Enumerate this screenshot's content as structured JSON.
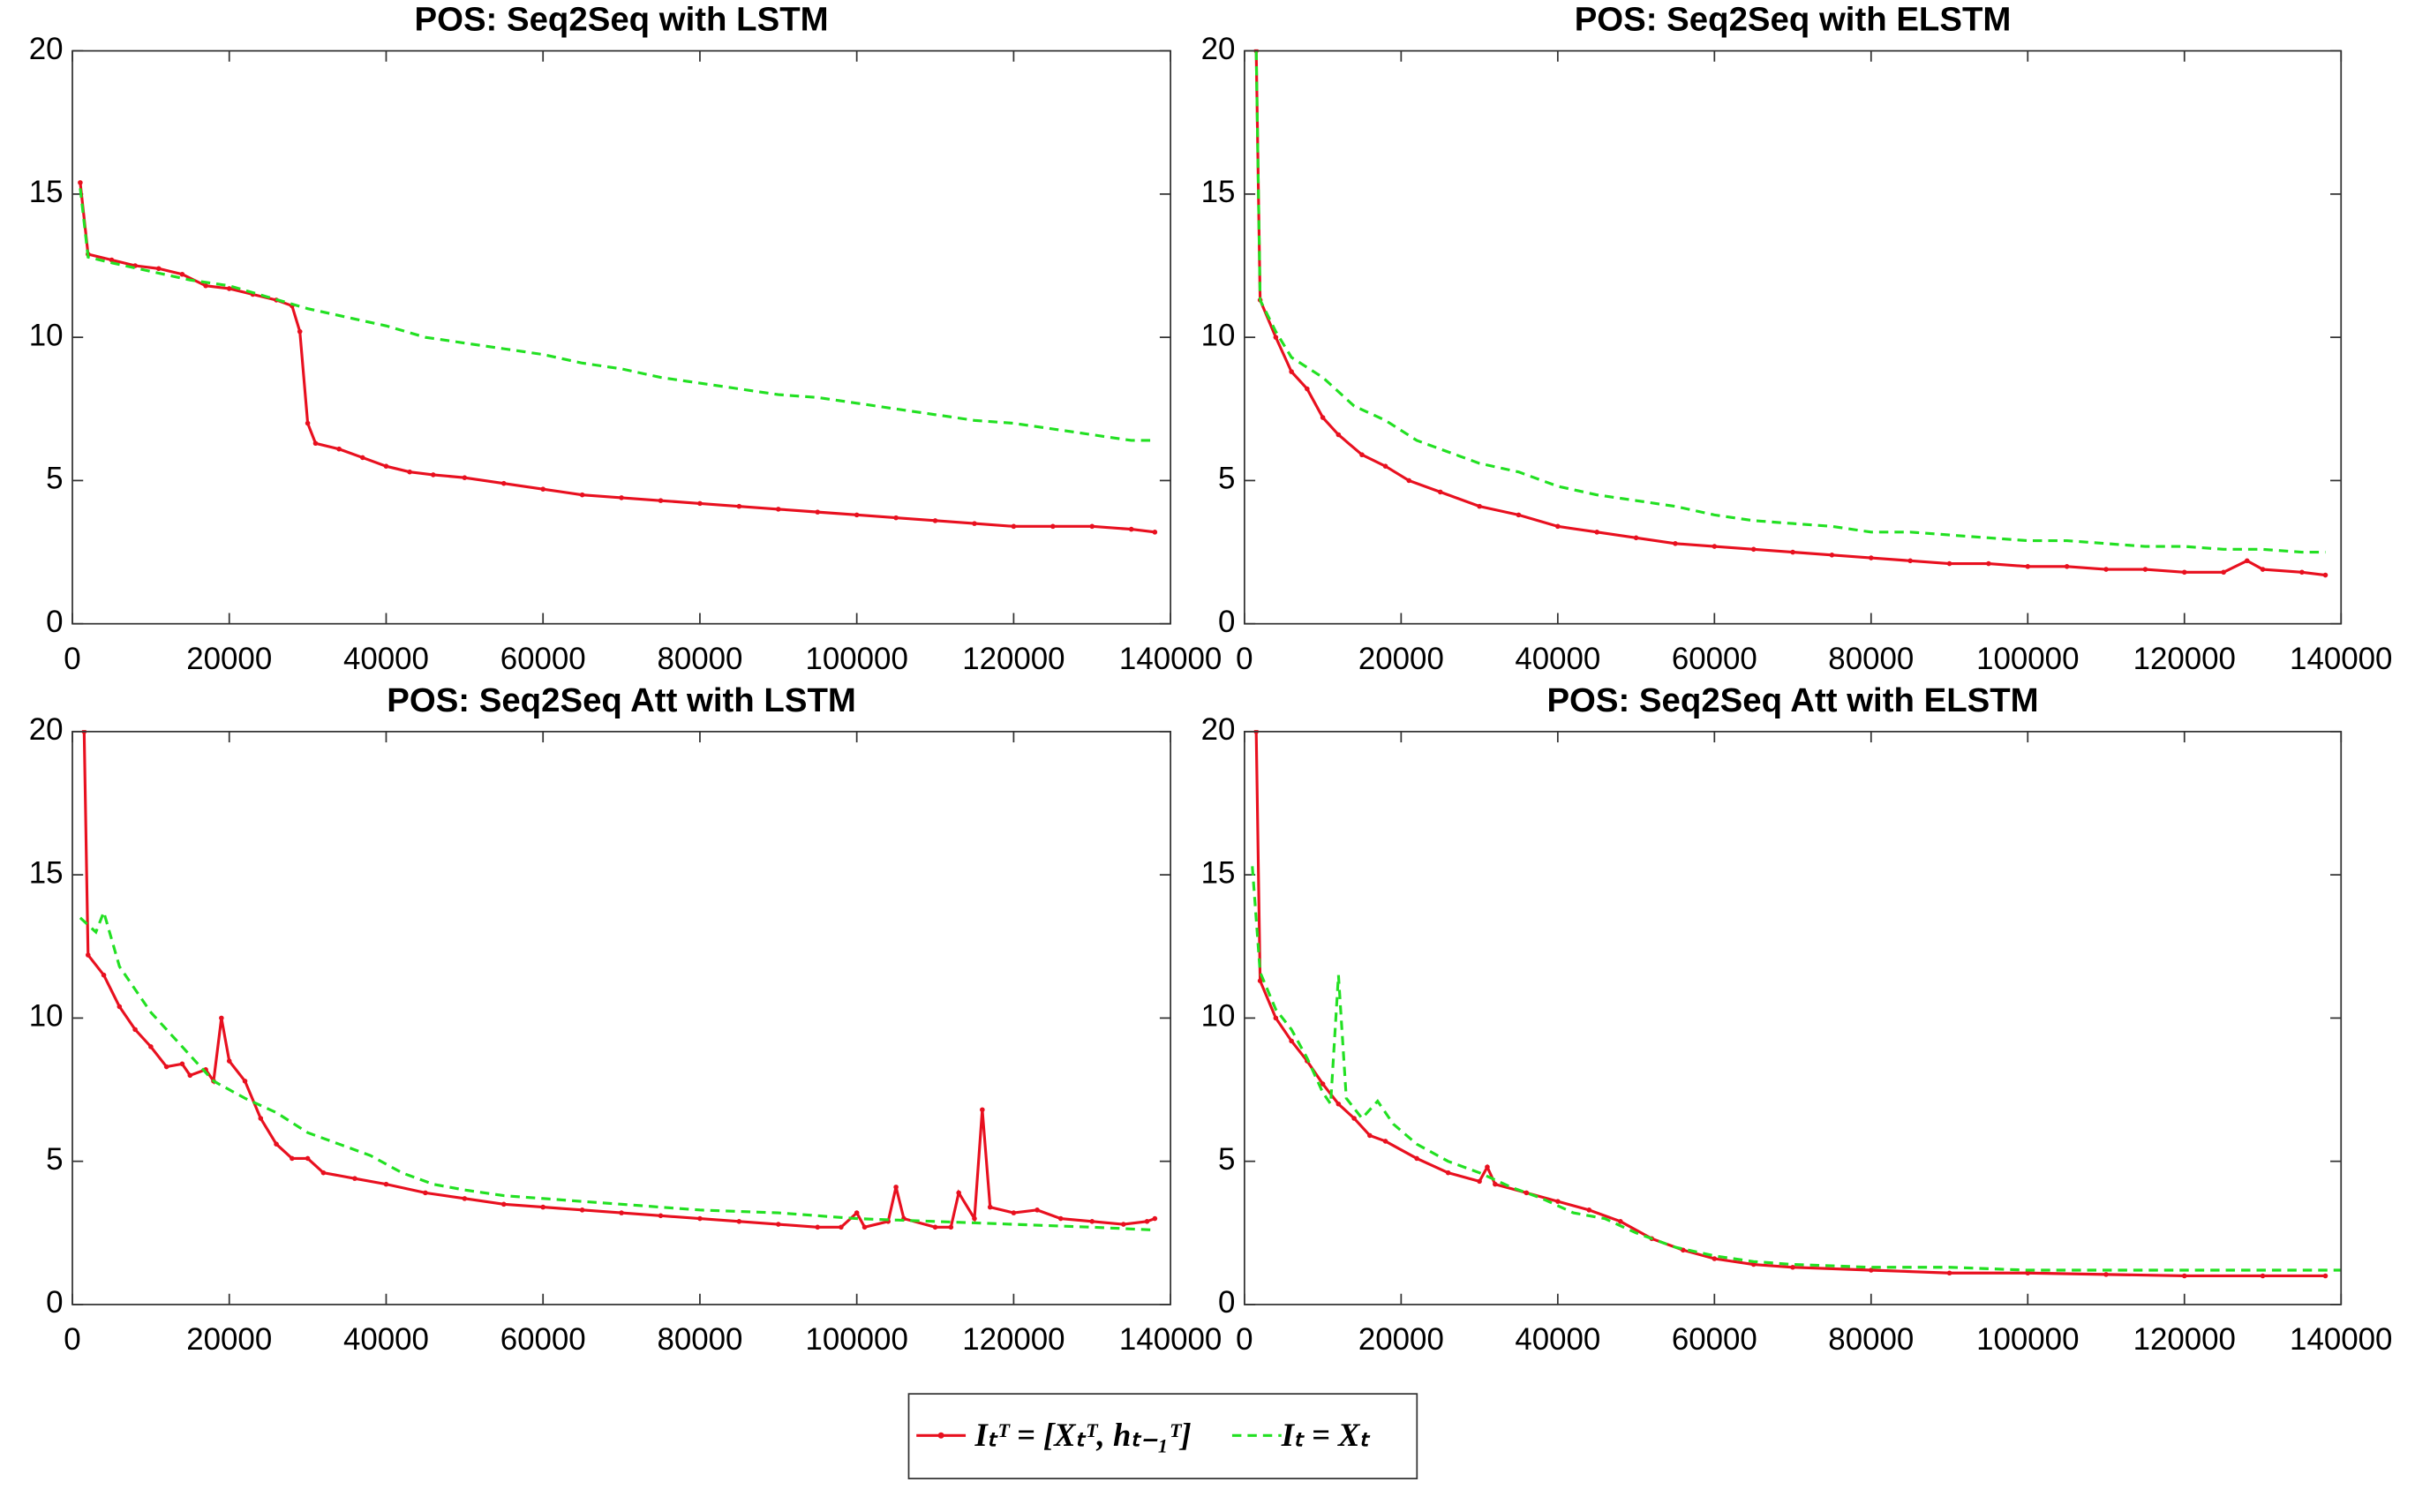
{
  "chart_data": [
    {
      "type": "line",
      "title": "POS: Seq2Seq with LSTM",
      "xlim": [
        0,
        140000
      ],
      "ylim": [
        0,
        20
      ],
      "xticks": [
        0,
        20000,
        40000,
        60000,
        80000,
        100000,
        120000,
        140000
      ],
      "yticks": [
        0,
        5,
        10,
        15,
        20
      ],
      "series": [
        {
          "color": "#e8101f",
          "linestyle": "solid",
          "marker": "dot",
          "x": [
            1000,
            2000,
            5000,
            8000,
            11000,
            14000,
            17000,
            20000,
            23000,
            26000,
            28000,
            29000,
            30000,
            31000,
            34000,
            37000,
            40000,
            43000,
            46000,
            50000,
            55000,
            60000,
            65000,
            70000,
            75000,
            80000,
            85000,
            90000,
            95000,
            100000,
            105000,
            110000,
            115000,
            120000,
            125000,
            130000,
            135000,
            138000
          ],
          "values": [
            15.4,
            12.9,
            12.7,
            12.5,
            12.4,
            12.2,
            11.8,
            11.7,
            11.5,
            11.3,
            11.1,
            10.2,
            7.0,
            6.3,
            6.1,
            5.8,
            5.5,
            5.3,
            5.2,
            5.1,
            4.9,
            4.7,
            4.5,
            4.4,
            4.3,
            4.2,
            4.1,
            4.0,
            3.9,
            3.8,
            3.7,
            3.6,
            3.5,
            3.4,
            3.4,
            3.4,
            3.3,
            3.2
          ]
        },
        {
          "color": "#22e022",
          "linestyle": "dashed",
          "marker": "none",
          "x": [
            1000,
            2000,
            5000,
            10000,
            15000,
            20000,
            25000,
            30000,
            35000,
            40000,
            45000,
            50000,
            55000,
            60000,
            65000,
            70000,
            75000,
            80000,
            85000,
            90000,
            95000,
            100000,
            105000,
            110000,
            115000,
            120000,
            125000,
            130000,
            135000,
            138000
          ],
          "values": [
            15.2,
            12.8,
            12.6,
            12.3,
            12.0,
            11.8,
            11.4,
            11.0,
            10.7,
            10.4,
            10.0,
            9.8,
            9.6,
            9.4,
            9.1,
            8.9,
            8.6,
            8.4,
            8.2,
            8.0,
            7.9,
            7.7,
            7.5,
            7.3,
            7.1,
            7.0,
            6.8,
            6.6,
            6.4,
            6.4
          ]
        }
      ]
    },
    {
      "type": "line",
      "title": "POS: Seq2Seq with ELSTM",
      "xlim": [
        0,
        140000
      ],
      "ylim": [
        0,
        20
      ],
      "xticks": [
        0,
        20000,
        40000,
        60000,
        80000,
        100000,
        120000,
        140000
      ],
      "yticks": [
        0,
        5,
        10,
        15,
        20
      ],
      "series": [
        {
          "color": "#e8101f",
          "linestyle": "solid",
          "marker": "dot",
          "x": [
            1500,
            2000,
            4000,
            6000,
            8000,
            10000,
            12000,
            15000,
            18000,
            21000,
            25000,
            30000,
            35000,
            40000,
            45000,
            50000,
            55000,
            60000,
            65000,
            70000,
            75000,
            80000,
            85000,
            90000,
            95000,
            100000,
            105000,
            110000,
            115000,
            120000,
            125000,
            128000,
            130000,
            135000,
            138000
          ],
          "values": [
            20,
            11.3,
            10.0,
            8.8,
            8.2,
            7.2,
            6.6,
            5.9,
            5.5,
            5.0,
            4.6,
            4.1,
            3.8,
            3.4,
            3.2,
            3.0,
            2.8,
            2.7,
            2.6,
            2.5,
            2.4,
            2.3,
            2.2,
            2.1,
            2.1,
            2.0,
            2.0,
            1.9,
            1.9,
            1.8,
            1.8,
            2.2,
            1.9,
            1.8,
            1.7
          ]
        },
        {
          "color": "#22e022",
          "linestyle": "dashed",
          "marker": "none",
          "x": [
            1500,
            2000,
            4000,
            6000,
            10000,
            14000,
            18000,
            22000,
            26000,
            30000,
            35000,
            40000,
            45000,
            50000,
            55000,
            60000,
            65000,
            70000,
            75000,
            80000,
            85000,
            90000,
            95000,
            100000,
            105000,
            110000,
            115000,
            120000,
            125000,
            130000,
            135000,
            138000
          ],
          "values": [
            20,
            11.3,
            10.2,
            9.3,
            8.6,
            7.6,
            7.1,
            6.4,
            6.0,
            5.6,
            5.3,
            4.8,
            4.5,
            4.3,
            4.1,
            3.8,
            3.6,
            3.5,
            3.4,
            3.2,
            3.2,
            3.1,
            3.0,
            2.9,
            2.9,
            2.8,
            2.7,
            2.7,
            2.6,
            2.6,
            2.5,
            2.5
          ]
        }
      ]
    },
    {
      "type": "line",
      "title": "POS: Seq2Seq Att with LSTM",
      "xlim": [
        0,
        140000
      ],
      "ylim": [
        0,
        20
      ],
      "xticks": [
        0,
        20000,
        40000,
        60000,
        80000,
        100000,
        120000,
        140000
      ],
      "yticks": [
        0,
        5,
        10,
        15,
        20
      ],
      "series": [
        {
          "color": "#e8101f",
          "linestyle": "solid",
          "marker": "dot",
          "x": [
            1500,
            2000,
            4000,
            6000,
            8000,
            10000,
            12000,
            14000,
            15000,
            17000,
            18000,
            19000,
            20000,
            22000,
            24000,
            26000,
            28000,
            30000,
            32000,
            36000,
            40000,
            45000,
            50000,
            55000,
            60000,
            65000,
            70000,
            75000,
            80000,
            85000,
            90000,
            95000,
            98000,
            100000,
            101000,
            104000,
            105000,
            106000,
            110000,
            112000,
            113000,
            115000,
            116000,
            117000,
            120000,
            123000,
            126000,
            130000,
            134000,
            137000,
            138000
          ],
          "values": [
            20,
            12.2,
            11.5,
            10.4,
            9.6,
            9.0,
            8.3,
            8.4,
            8.0,
            8.2,
            7.8,
            10.0,
            8.5,
            7.8,
            6.5,
            5.6,
            5.1,
            5.1,
            4.6,
            4.4,
            4.2,
            3.9,
            3.7,
            3.5,
            3.4,
            3.3,
            3.2,
            3.1,
            3.0,
            2.9,
            2.8,
            2.7,
            2.7,
            3.2,
            2.7,
            2.9,
            4.1,
            3.0,
            2.7,
            2.7,
            3.9,
            3.0,
            6.8,
            3.4,
            3.2,
            3.3,
            3.0,
            2.9,
            2.8,
            2.9,
            3.0
          ]
        },
        {
          "color": "#22e022",
          "linestyle": "dashed",
          "marker": "none",
          "x": [
            1000,
            3000,
            4000,
            6000,
            10000,
            14000,
            18000,
            22000,
            26000,
            30000,
            34000,
            38000,
            42000,
            46000,
            50000,
            55000,
            60000,
            70000,
            80000,
            90000,
            100000,
            110000,
            120000,
            130000,
            138000
          ],
          "values": [
            13.5,
            13.0,
            13.7,
            11.8,
            10.2,
            9.0,
            7.8,
            7.2,
            6.7,
            6.0,
            5.6,
            5.2,
            4.6,
            4.2,
            4.0,
            3.8,
            3.7,
            3.5,
            3.3,
            3.2,
            3.0,
            2.9,
            2.8,
            2.7,
            2.6
          ]
        }
      ]
    },
    {
      "type": "line",
      "title": "POS: Seq2Seq Att with ELSTM",
      "xlim": [
        0,
        140000
      ],
      "ylim": [
        0,
        20
      ],
      "xticks": [
        0,
        20000,
        40000,
        60000,
        80000,
        100000,
        120000,
        140000
      ],
      "yticks": [
        0,
        5,
        10,
        15,
        20
      ],
      "series": [
        {
          "color": "#e8101f",
          "linestyle": "solid",
          "marker": "dot",
          "x": [
            1500,
            2000,
            4000,
            6000,
            8000,
            10000,
            12000,
            14000,
            16000,
            18000,
            22000,
            26000,
            30000,
            31000,
            32000,
            36000,
            40000,
            44000,
            48000,
            52000,
            56000,
            60000,
            65000,
            70000,
            80000,
            90000,
            100000,
            110000,
            120000,
            130000,
            138000
          ],
          "values": [
            20,
            11.3,
            10.0,
            9.2,
            8.5,
            7.7,
            7.0,
            6.5,
            5.9,
            5.7,
            5.1,
            4.6,
            4.3,
            4.8,
            4.2,
            3.9,
            3.6,
            3.3,
            2.9,
            2.3,
            1.9,
            1.6,
            1.4,
            1.3,
            1.2,
            1.1,
            1.1,
            1.05,
            1.0,
            1.0,
            1.0
          ]
        },
        {
          "color": "#22e022",
          "linestyle": "dashed",
          "marker": "none",
          "x": [
            1000,
            2000,
            4000,
            6000,
            8000,
            10000,
            11000,
            12000,
            13000,
            15000,
            17000,
            19000,
            22000,
            26000,
            30000,
            34000,
            38000,
            42000,
            46000,
            50000,
            55000,
            60000,
            65000,
            70000,
            80000,
            90000,
            100000,
            110000,
            120000,
            130000,
            140000
          ],
          "values": [
            15.3,
            11.6,
            10.3,
            9.6,
            8.6,
            7.4,
            7.0,
            11.5,
            7.2,
            6.5,
            7.1,
            6.3,
            5.6,
            5.0,
            4.6,
            4.1,
            3.7,
            3.2,
            3.0,
            2.5,
            2.0,
            1.7,
            1.5,
            1.4,
            1.3,
            1.3,
            1.2,
            1.2,
            1.2,
            1.2,
            1.2
          ]
        }
      ]
    }
  ],
  "legend": {
    "entries": [
      {
        "name": "Iₜᵀ = [Xₜᵀ, hₜ₋₁ᵀ]",
        "color": "#e8101f",
        "linestyle": "solid",
        "marker": "dot"
      },
      {
        "name": "Iₜ = Xₜ",
        "color": "#22e022",
        "linestyle": "dashed",
        "marker": "none"
      }
    ]
  }
}
